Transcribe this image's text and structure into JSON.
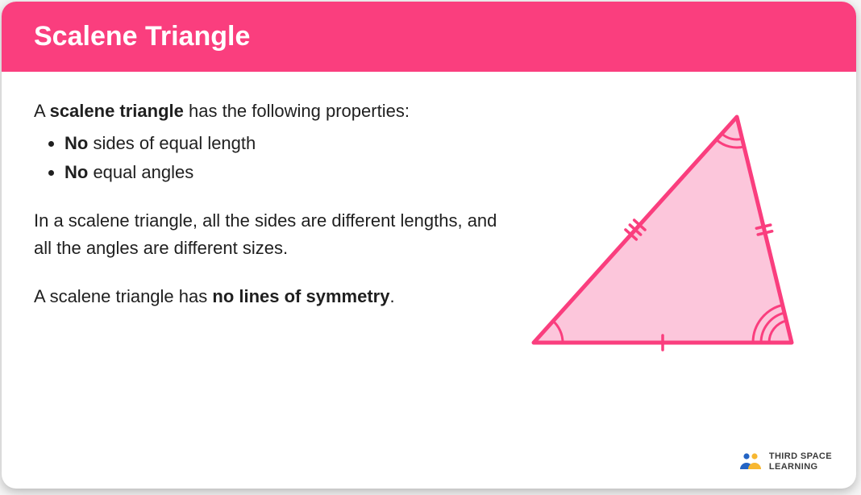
{
  "header": {
    "title": "Scalene Triangle"
  },
  "content": {
    "intro_prefix": "A ",
    "intro_bold": "scalene triangle",
    "intro_suffix": " has the following properties:",
    "bullets": [
      {
        "bold": "No",
        "rest": " sides of equal length"
      },
      {
        "bold": "No",
        "rest": " equal angles"
      }
    ],
    "para1": "In a scalene triangle, all the sides are different lengths, and all the angles are different sizes.",
    "para2_prefix": "A scalene triangle has ",
    "para2_bold": "no lines of symmetry",
    "para2_suffix": "."
  },
  "diagram": {
    "type": "triangle",
    "stroke": "#fa3e7e",
    "fill": "#fcc6db",
    "stroke_width": 5,
    "vertices": {
      "A": [
        20,
        300
      ],
      "B": [
        340,
        300
      ],
      "C": [
        272,
        20
      ]
    },
    "angle_arcs": [
      {
        "at": "A",
        "arcs": 1,
        "r": 36,
        "step": 10
      },
      {
        "at": "B",
        "arcs": 3,
        "r": 28,
        "step": 10
      },
      {
        "at": "C",
        "arcs": 2,
        "r": 28,
        "step": 10
      }
    ],
    "side_ticks": [
      {
        "side": "AB",
        "ticks": 1
      },
      {
        "side": "BC",
        "ticks": 2
      },
      {
        "side": "CA",
        "ticks": 3
      }
    ]
  },
  "logo": {
    "line1": "THIRD SPACE",
    "line2": "LEARNING",
    "blue": "#2464c4",
    "yellow": "#f7b731"
  },
  "colors": {
    "header_bg": "#fa3e7e",
    "header_text": "#ffffff",
    "body_text": "#1f1f1f",
    "card_bg": "#ffffff"
  }
}
